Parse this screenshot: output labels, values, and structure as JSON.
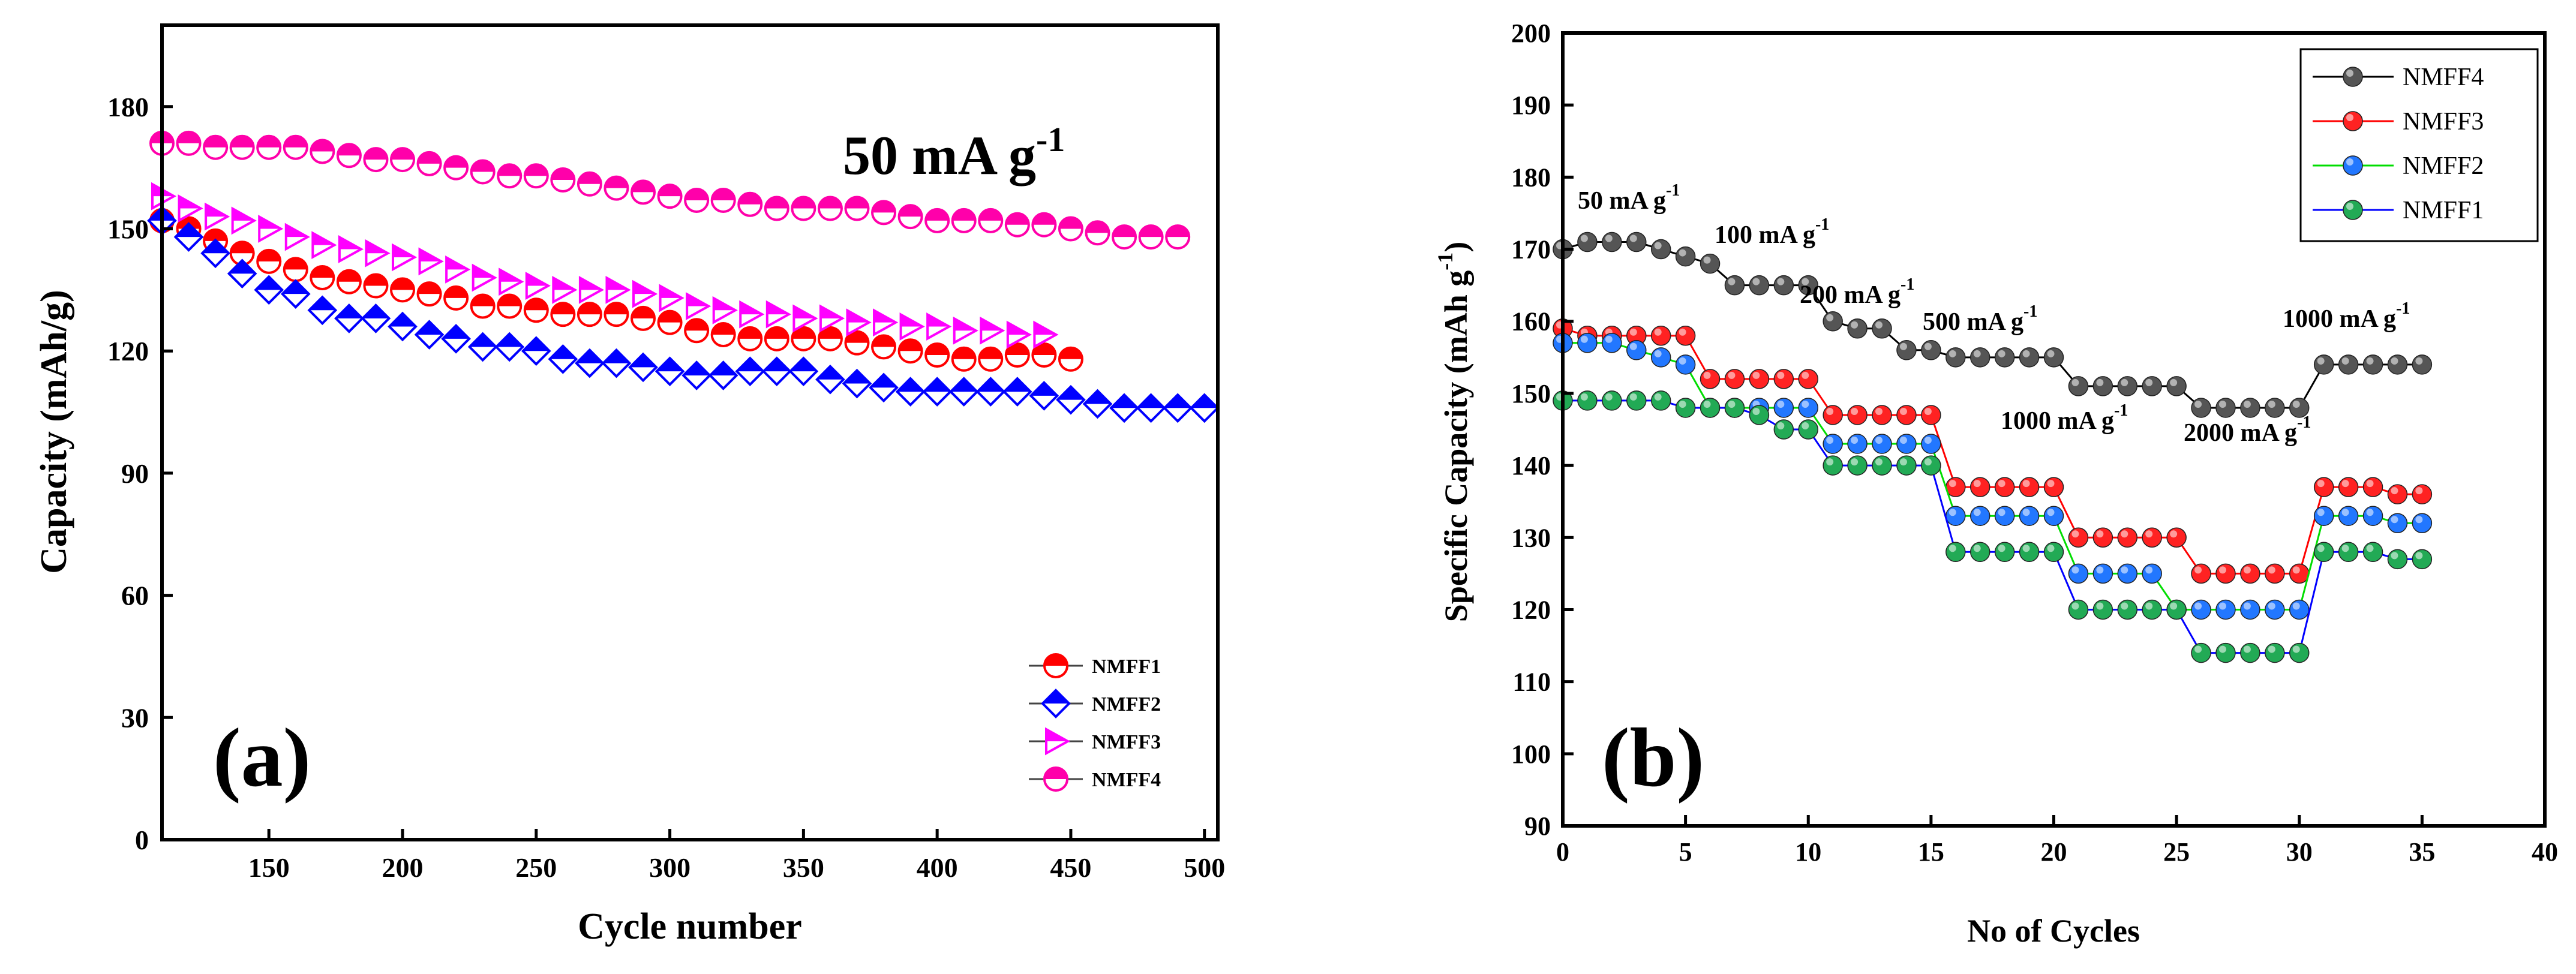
{
  "chart_data": [
    {
      "type": "line",
      "panel_label": "(a)",
      "annotation": "50 mA g",
      "annotation_sup": "-1",
      "xlabel": "Cycle number",
      "ylabel": "Capacity (mAh/g)",
      "xlim": [
        110,
        505
      ],
      "ylim": [
        0,
        200
      ],
      "xticks": [
        "150",
        "200",
        "250",
        "300",
        "350",
        "400",
        "450",
        "500"
      ],
      "yticks": [
        "0",
        "30",
        "60",
        "90",
        "120",
        "150",
        "180"
      ],
      "grid": false,
      "legend_position": "bottom-right",
      "series": [
        {
          "name": "NMFF1",
          "color": "#ff0000",
          "marker": "circle-half",
          "x": [
            110,
            120,
            130,
            140,
            150,
            160,
            170,
            180,
            190,
            200,
            210,
            220,
            230,
            240,
            250,
            260,
            270,
            280,
            290,
            300,
            310,
            320,
            330,
            340,
            350,
            360,
            370,
            380,
            390,
            400,
            410,
            420,
            430,
            440,
            450
          ],
          "y": [
            152,
            150,
            147,
            144,
            142,
            140,
            138,
            137,
            136,
            135,
            134,
            133,
            131,
            131,
            130,
            129,
            129,
            129,
            128,
            127,
            125,
            124,
            123,
            123,
            123,
            123,
            122,
            121,
            120,
            119,
            118,
            118,
            119,
            119,
            118
          ]
        },
        {
          "name": "NMFF2",
          "color": "#0000ff",
          "marker": "diamond-half",
          "x": [
            110,
            120,
            130,
            140,
            150,
            160,
            170,
            180,
            190,
            200,
            210,
            220,
            230,
            240,
            250,
            260,
            270,
            280,
            290,
            300,
            310,
            320,
            330,
            340,
            350,
            360,
            370,
            380,
            390,
            400,
            410,
            420,
            430,
            440,
            450,
            460,
            470,
            480,
            490,
            500
          ],
          "y": [
            152,
            148,
            144,
            139,
            135,
            134,
            130,
            128,
            128,
            126,
            124,
            123,
            121,
            121,
            120,
            118,
            117,
            117,
            116,
            115,
            114,
            114,
            115,
            115,
            115,
            113,
            112,
            111,
            110,
            110,
            110,
            110,
            110,
            109,
            108,
            107,
            106,
            106,
            106,
            106
          ]
        },
        {
          "name": "NMFF3",
          "color": "#ff00ff",
          "marker": "triangle-right",
          "x": [
            110,
            120,
            130,
            140,
            150,
            160,
            170,
            180,
            190,
            200,
            210,
            220,
            230,
            240,
            250,
            260,
            270,
            280,
            290,
            300,
            310,
            320,
            330,
            340,
            350,
            360,
            370,
            380,
            390,
            400,
            410,
            420,
            430,
            440
          ],
          "y": [
            158,
            155,
            153,
            152,
            150,
            148,
            146,
            145,
            144,
            143,
            142,
            140,
            138,
            137,
            136,
            135,
            135,
            135,
            134,
            133,
            131,
            130,
            129,
            129,
            128,
            128,
            127,
            127,
            126,
            126,
            125,
            125,
            124,
            124
          ]
        },
        {
          "name": "NMFF4",
          "color": "#ff00aa",
          "marker": "circle-half",
          "x": [
            110,
            120,
            130,
            140,
            150,
            160,
            170,
            180,
            190,
            200,
            210,
            220,
            230,
            240,
            250,
            260,
            270,
            280,
            290,
            300,
            310,
            320,
            330,
            340,
            350,
            360,
            370,
            380,
            390,
            400,
            410,
            420,
            430,
            440,
            450,
            460,
            470,
            480,
            490
          ],
          "y": [
            171,
            171,
            170,
            170,
            170,
            170,
            169,
            168,
            167,
            167,
            166,
            165,
            164,
            163,
            163,
            162,
            161,
            160,
            159,
            158,
            157,
            157,
            156,
            155,
            155,
            155,
            155,
            154,
            153,
            152,
            152,
            152,
            151,
            151,
            150,
            149,
            148,
            148,
            148
          ]
        }
      ]
    },
    {
      "type": "line",
      "panel_label": "(b)",
      "xlabel": "No of Cycles",
      "ylabel": "Specific Capacity (mAh g",
      "ylabel_sup": "-1",
      "ylabel_close": ")",
      "xlim": [
        0,
        40
      ],
      "ylim": [
        90,
        200
      ],
      "xticks": [
        "0",
        "5",
        "10",
        "15",
        "20",
        "25",
        "30",
        "35",
        "40"
      ],
      "yticks": [
        "90",
        "100",
        "110",
        "120",
        "130",
        "140",
        "150",
        "160",
        "170",
        "180",
        "190",
        "200"
      ],
      "grid": false,
      "legend_position": "top-right",
      "rate_labels": [
        {
          "text": "50 mA g",
          "sup": "-1"
        },
        {
          "text": "100 mA g",
          "sup": "-1"
        },
        {
          "text": "200 mA g",
          "sup": "-1"
        },
        {
          "text": "500 mA g",
          "sup": "-1"
        },
        {
          "text": "1000 mA g",
          "sup": "-1"
        },
        {
          "text": "2000 mA g",
          "sup": "-1"
        },
        {
          "text": "1000 mA g",
          "sup": "-1"
        }
      ],
      "series": [
        {
          "name": "NMFF4",
          "color": "#555555",
          "line": "#000000",
          "x": [
            0,
            1,
            2,
            3,
            4,
            5,
            6,
            7,
            8,
            9,
            10,
            11,
            12,
            13,
            14,
            15,
            16,
            17,
            18,
            19,
            20,
            21,
            22,
            23,
            24,
            25,
            26,
            27,
            28,
            29,
            30,
            31,
            32,
            33,
            34,
            35
          ],
          "y": [
            170,
            171,
            171,
            171,
            170,
            169,
            168,
            165,
            165,
            165,
            165,
            160,
            159,
            159,
            156,
            156,
            155,
            155,
            155,
            155,
            155,
            151,
            151,
            151,
            151,
            151,
            148,
            148,
            148,
            148,
            148,
            154,
            154,
            154,
            154,
            154
          ]
        },
        {
          "name": "NMFF3",
          "color": "#ff2222",
          "line": "#ff0000",
          "x": [
            0,
            1,
            2,
            3,
            4,
            5,
            6,
            7,
            8,
            9,
            10,
            11,
            12,
            13,
            14,
            15,
            16,
            17,
            18,
            19,
            20,
            21,
            22,
            23,
            24,
            25,
            26,
            27,
            28,
            29,
            30,
            31,
            32,
            33,
            34,
            35
          ],
          "y": [
            159,
            158,
            158,
            158,
            158,
            158,
            152,
            152,
            152,
            152,
            152,
            147,
            147,
            147,
            147,
            147,
            137,
            137,
            137,
            137,
            137,
            130,
            130,
            130,
            130,
            130,
            125,
            125,
            125,
            125,
            125,
            137,
            137,
            137,
            136,
            136
          ]
        },
        {
          "name": "NMFF2",
          "color": "#2277ff",
          "line": "#00dd00",
          "x": [
            0,
            1,
            2,
            3,
            4,
            5,
            6,
            7,
            8,
            9,
            10,
            11,
            12,
            13,
            14,
            15,
            16,
            17,
            18,
            19,
            20,
            21,
            22,
            23,
            24,
            25,
            26,
            27,
            28,
            29,
            30,
            31,
            32,
            33,
            34,
            35
          ],
          "y": [
            157,
            157,
            157,
            156,
            155,
            154,
            148,
            148,
            148,
            148,
            148,
            143,
            143,
            143,
            143,
            143,
            133,
            133,
            133,
            133,
            133,
            125,
            125,
            125,
            125,
            120,
            120,
            120,
            120,
            120,
            120,
            133,
            133,
            133,
            132,
            132
          ]
        },
        {
          "name": "NMFF1",
          "color": "#22aa55",
          "line": "#0000ff",
          "x": [
            0,
            1,
            2,
            3,
            4,
            5,
            6,
            7,
            8,
            9,
            10,
            11,
            12,
            13,
            14,
            15,
            16,
            17,
            18,
            19,
            20,
            21,
            22,
            23,
            24,
            25,
            26,
            27,
            28,
            29,
            30,
            31,
            32,
            33,
            34,
            35
          ],
          "y": [
            149,
            149,
            149,
            149,
            149,
            148,
            148,
            148,
            147,
            145,
            145,
            140,
            140,
            140,
            140,
            140,
            128,
            128,
            128,
            128,
            128,
            120,
            120,
            120,
            120,
            120,
            114,
            114,
            114,
            114,
            114,
            128,
            128,
            128,
            127,
            127
          ]
        }
      ]
    }
  ]
}
